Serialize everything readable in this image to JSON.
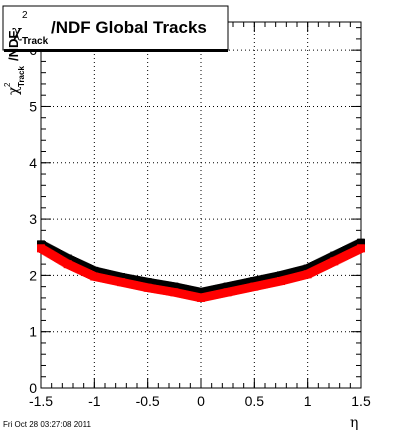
{
  "chart_data": {
    "type": "scatter",
    "title": {
      "chi": "χ",
      "sup": "2",
      "sub": "Track",
      "rest": "/NDF  Global Tracks"
    },
    "ylabel": {
      "chi": "χ",
      "sup": "2",
      "sub": "Track",
      "rest": "/NDF"
    },
    "xlabel": "η",
    "xlim": [
      -1.5,
      1.5
    ],
    "ylim": [
      0,
      6.5
    ],
    "x_ticks": [
      -1.5,
      -1,
      -0.5,
      0,
      0.5,
      1,
      1.5
    ],
    "x_tick_labels": [
      "-1.5",
      "-1",
      "-0.5",
      "0",
      "0.5",
      "1",
      "1.5"
    ],
    "y_ticks": [
      0,
      1,
      2,
      3,
      4,
      5,
      6
    ],
    "y_tick_labels": [
      "0",
      "1",
      "2",
      "3",
      "4",
      "5",
      "6"
    ],
    "grid": true,
    "series": [
      {
        "color": "#000000",
        "points": [
          {
            "x": -1.5,
            "y": 2.55
          },
          {
            "x": -1.25,
            "y": 2.3
          },
          {
            "x": -1.0,
            "y": 2.08
          },
          {
            "x": -0.75,
            "y": 1.97
          },
          {
            "x": -0.5,
            "y": 1.88
          },
          {
            "x": -0.25,
            "y": 1.8
          },
          {
            "x": 0.0,
            "y": 1.7
          },
          {
            "x": 0.25,
            "y": 1.8
          },
          {
            "x": 0.5,
            "y": 1.9
          },
          {
            "x": 0.75,
            "y": 2.0
          },
          {
            "x": 1.0,
            "y": 2.12
          },
          {
            "x": 1.25,
            "y": 2.35
          },
          {
            "x": 1.5,
            "y": 2.58
          }
        ]
      },
      {
        "color": "#ff0000",
        "points": [
          {
            "x": -1.5,
            "y": 2.48
          },
          {
            "x": -1.25,
            "y": 2.2
          },
          {
            "x": -1.0,
            "y": 1.98
          },
          {
            "x": -0.75,
            "y": 1.88
          },
          {
            "x": -0.5,
            "y": 1.78
          },
          {
            "x": -0.25,
            "y": 1.7
          },
          {
            "x": 0.0,
            "y": 1.6
          },
          {
            "x": 0.25,
            "y": 1.7
          },
          {
            "x": 0.5,
            "y": 1.8
          },
          {
            "x": 0.75,
            "y": 1.9
          },
          {
            "x": 1.0,
            "y": 2.02
          },
          {
            "x": 1.25,
            "y": 2.25
          },
          {
            "x": 1.5,
            "y": 2.48
          }
        ]
      }
    ]
  },
  "footer": {
    "timestamp": "Fri Oct 28 03:27:08 2011"
  }
}
